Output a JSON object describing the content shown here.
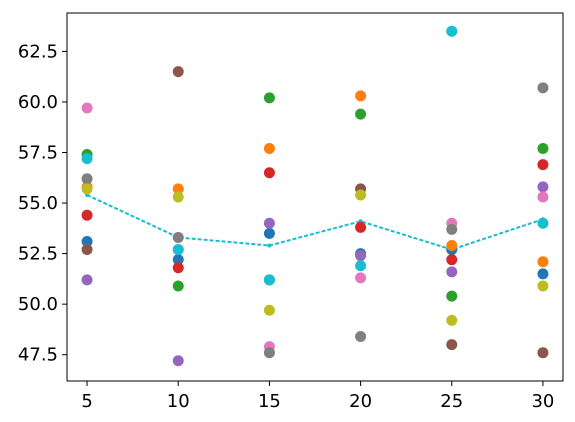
{
  "chart_data": {
    "type": "scatter",
    "title": "",
    "xlabel": "",
    "ylabel": "",
    "xlim": [
      3.9,
      31.1
    ],
    "ylim": [
      46.2,
      64.4
    ],
    "xticks": [
      5,
      10,
      15,
      20,
      25,
      30
    ],
    "yticks": [
      47.5,
      50.0,
      52.5,
      55.0,
      57.5,
      60.0,
      62.5
    ],
    "xtick_labels": [
      "5",
      "10",
      "15",
      "20",
      "25",
      "30"
    ],
    "ytick_labels": [
      "47.5",
      "50.0",
      "52.5",
      "55.0",
      "57.5",
      "60.0",
      "62.5"
    ],
    "grid": false,
    "legend": "none",
    "x": [
      5,
      10,
      15,
      20,
      25,
      30
    ],
    "series": [
      {
        "color": "#1f77b4",
        "values": [
          53.1,
          52.2,
          53.5,
          52.5,
          52.7,
          51.5
        ]
      },
      {
        "color": "#ff7f0e",
        "values": [
          55.8,
          55.7,
          57.7,
          60.3,
          52.9,
          52.1
        ]
      },
      {
        "color": "#2ca02c",
        "values": [
          57.4,
          50.9,
          60.2,
          59.4,
          50.4,
          57.7
        ]
      },
      {
        "color": "#d62728",
        "values": [
          54.4,
          51.8,
          56.5,
          53.8,
          52.2,
          56.9
        ]
      },
      {
        "color": "#9467bd",
        "values": [
          51.2,
          47.2,
          54.0,
          52.4,
          51.6,
          55.8
        ]
      },
      {
        "color": "#8c564b",
        "values": [
          52.7,
          61.5,
          51.2,
          55.7,
          48.0,
          47.6
        ]
      },
      {
        "color": "#e377c2",
        "values": [
          59.7,
          52.7,
          47.9,
          51.3,
          54.0,
          55.3
        ]
      },
      {
        "color": "#7f7f7f",
        "values": [
          56.2,
          53.3,
          47.6,
          48.4,
          53.7,
          60.7
        ]
      },
      {
        "color": "#bcbd22",
        "values": [
          55.7,
          55.3,
          49.7,
          55.4,
          49.2,
          50.9
        ]
      },
      {
        "color": "#17becf",
        "values": [
          57.2,
          52.7,
          51.2,
          51.9,
          63.5,
          54.0
        ]
      }
    ],
    "mean_line": {
      "color": "#17becf",
      "style": "dashed",
      "values": [
        55.4,
        53.3,
        52.9,
        54.1,
        52.7,
        54.2
      ]
    }
  }
}
